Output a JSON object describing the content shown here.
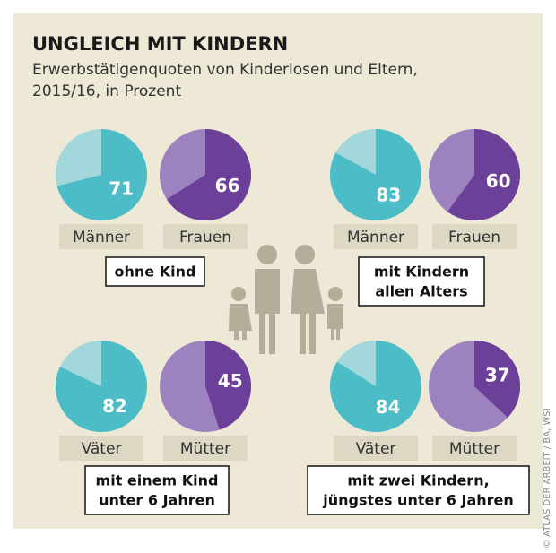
{
  "title": "UNGLEICH MIT KINDERN",
  "subtitle": [
    "Erwerbstätigenquoten von Kinderlosen und Eltern,",
    "2015/16, in Prozent"
  ],
  "credit": "© ATLAS DER ARBEIT / BA, WSI",
  "groups": [
    {
      "label": [
        "ohne Kind"
      ]
    },
    {
      "label": [
        "mit Kindern",
        "allen Alters"
      ]
    },
    {
      "label": [
        "mit einem Kind",
        "unter 6 Jahren"
      ]
    },
    {
      "label": [
        "mit zwei Kindern,",
        "jüngstes unter 6 Jahren"
      ]
    }
  ],
  "chart_data": [
    {
      "type": "pie",
      "label": "Männer",
      "values": [
        71
      ],
      "color": "#4cbdc7",
      "rest_color": "#a2d7db"
    },
    {
      "type": "pie",
      "label": "Frauen",
      "values": [
        66
      ],
      "color": "#6c3f98",
      "rest_color": "#9d82c0"
    },
    {
      "type": "pie",
      "label": "Männer",
      "values": [
        83
      ],
      "color": "#4cbdc7",
      "rest_color": "#a2d7db"
    },
    {
      "type": "pie",
      "label": "Frauen",
      "values": [
        60
      ],
      "color": "#6c3f98",
      "rest_color": "#9d82c0"
    },
    {
      "type": "pie",
      "label": "Väter",
      "values": [
        82
      ],
      "color": "#4cbdc7",
      "rest_color": "#a2d7db"
    },
    {
      "type": "pie",
      "label": "Mütter",
      "values": [
        45
      ],
      "color": "#6c3f98",
      "rest_color": "#9d82c0"
    },
    {
      "type": "pie",
      "label": "Väter",
      "values": [
        84
      ],
      "color": "#4cbdc7",
      "rest_color": "#a2d7db"
    },
    {
      "type": "pie",
      "label": "Mütter",
      "values": [
        37
      ],
      "color": "#6c3f98",
      "rest_color": "#9d82c0"
    }
  ]
}
